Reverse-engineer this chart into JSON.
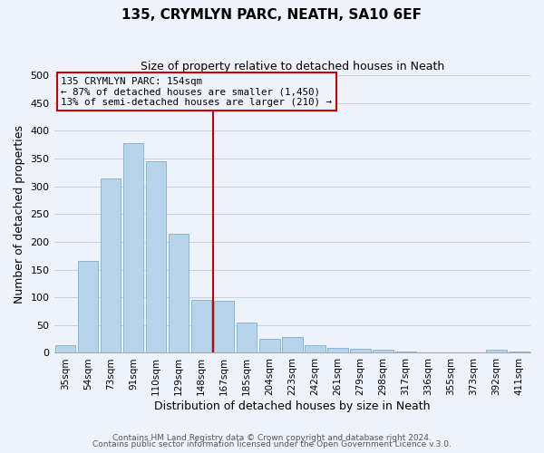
{
  "title": "135, CRYMLYN PARC, NEATH, SA10 6EF",
  "subtitle": "Size of property relative to detached houses in Neath",
  "xlabel": "Distribution of detached houses by size in Neath",
  "ylabel": "Number of detached properties",
  "categories": [
    "35sqm",
    "54sqm",
    "73sqm",
    "91sqm",
    "110sqm",
    "129sqm",
    "148sqm",
    "167sqm",
    "185sqm",
    "204sqm",
    "223sqm",
    "242sqm",
    "261sqm",
    "279sqm",
    "298sqm",
    "317sqm",
    "336sqm",
    "355sqm",
    "373sqm",
    "392sqm",
    "411sqm"
  ],
  "values": [
    14,
    166,
    314,
    377,
    345,
    215,
    95,
    93,
    55,
    25,
    29,
    13,
    9,
    7,
    5,
    3,
    1,
    0,
    0,
    5,
    3
  ],
  "bar_color": "#b8d4ea",
  "bar_edge_color": "#7aafd4",
  "vline_color": "#cc0000",
  "annotation_title": "135 CRYMLYN PARC: 154sqm",
  "annotation_line1": "← 87% of detached houses are smaller (1,450)",
  "annotation_line2": "13% of semi-detached houses are larger (210) →",
  "annotation_box_color": "#cc0000",
  "ylim": [
    0,
    500
  ],
  "yticks": [
    0,
    50,
    100,
    150,
    200,
    250,
    300,
    350,
    400,
    450,
    500
  ],
  "footer1": "Contains HM Land Registry data © Crown copyright and database right 2024.",
  "footer2": "Contains public sector information licensed under the Open Government Licence v.3.0.",
  "bg_color": "#eef2fb",
  "grid_color": "#c8d0e8",
  "title_fontsize": 11,
  "subtitle_fontsize": 9,
  "xlabel_fontsize": 9,
  "ylabel_fontsize": 9,
  "tick_fontsize": 7.5,
  "footer_fontsize": 6.5
}
